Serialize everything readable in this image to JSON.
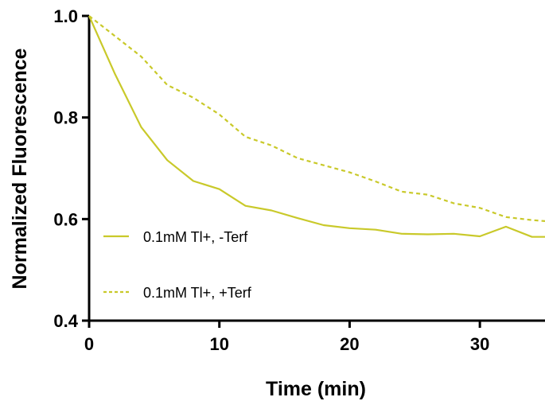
{
  "chart_data": {
    "type": "line",
    "xlabel": "Time (min)",
    "ylabel": "Normalized Fluorescence",
    "xlim": [
      0,
      35
    ],
    "ylim": [
      0.4,
      1.0
    ],
    "x_ticks": [
      0,
      10,
      20,
      30
    ],
    "x_tick_labels": [
      "0",
      "10",
      "20",
      "30"
    ],
    "y_ticks": [
      0.4,
      0.6,
      0.8,
      1.0
    ],
    "y_tick_labels": [
      "0.4",
      "0.6",
      "0.8",
      "1.0"
    ],
    "grid": false,
    "legend_position": "bottom-left",
    "series": [
      {
        "name": "0.1mM Tl+, -Terf",
        "style": "solid",
        "color": "#c9c92a",
        "x": [
          0,
          2,
          4,
          6,
          8,
          10,
          12,
          14,
          16,
          18,
          20,
          22,
          24,
          26,
          28,
          30,
          32,
          34,
          35
        ],
        "y": [
          1.0,
          0.885,
          0.781,
          0.716,
          0.675,
          0.659,
          0.626,
          0.617,
          0.602,
          0.588,
          0.582,
          0.579,
          0.571,
          0.57,
          0.571,
          0.566,
          0.585,
          0.565,
          0.565
        ]
      },
      {
        "name": "0.1mM Tl+, +Terf",
        "style": "dashed",
        "color": "#c9c92a",
        "x": [
          0,
          2,
          4,
          6,
          8,
          10,
          12,
          14,
          16,
          18,
          20,
          22,
          24,
          26,
          28,
          30,
          32,
          34,
          35
        ],
        "y": [
          1.0,
          0.96,
          0.92,
          0.864,
          0.839,
          0.806,
          0.762,
          0.745,
          0.72,
          0.706,
          0.692,
          0.674,
          0.654,
          0.648,
          0.631,
          0.622,
          0.604,
          0.598,
          0.596
        ]
      }
    ]
  }
}
